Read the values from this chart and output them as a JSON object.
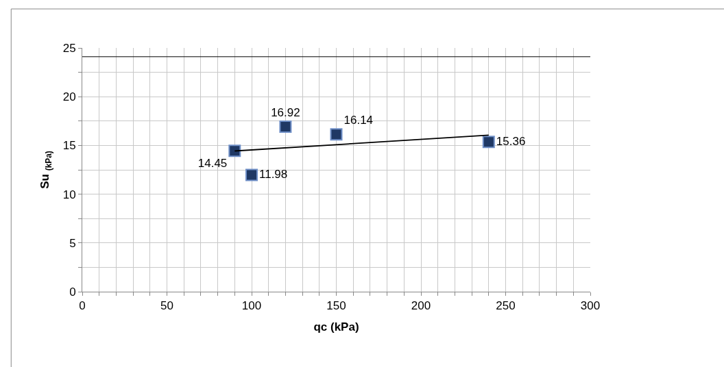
{
  "chart_data": {
    "type": "scatter",
    "xlabel": "qc (kPa)",
    "ylabel": "Su $_{(kPa)}$",
    "x": [
      90,
      100,
      120,
      150,
      240
    ],
    "series": [
      {
        "color": "#1f3864",
        "values": [
          14.45,
          11.98,
          16.92,
          16.14,
          15.36
        ],
        "value_labels": [
          "14.45",
          "11.98",
          "16.92",
          "16.14",
          "15.36"
        ],
        "marker": "square"
      },
      {
        "type": "line",
        "x": [
          90,
          240
        ],
        "color": "#000000",
        "values": [
          14.43,
          16.05
        ],
        "marker": "none"
      }
    ],
    "ref_lines": [
      {
        "axis": "y",
        "value": 24.1,
        "color": "#000000"
      }
    ],
    "xlim": [
      0,
      300
    ],
    "xticks": [
      0,
      {
        "value": 10,
        "label": null
      },
      {
        "value": 20,
        "label": null
      },
      {
        "value": 30,
        "label": null
      },
      {
        "value": 40,
        "label": null
      },
      50,
      {
        "value": 60,
        "label": null
      },
      {
        "value": 70,
        "label": null
      },
      {
        "value": 80,
        "label": null
      },
      {
        "value": 90,
        "label": null
      },
      100,
      {
        "value": 110,
        "label": null
      },
      {
        "value": 120,
        "label": null
      },
      {
        "value": 130,
        "label": null
      },
      {
        "value": 140,
        "label": null
      },
      150,
      {
        "value": 160,
        "label": null
      },
      {
        "value": 170,
        "label": null
      },
      {
        "value": 180,
        "label": null
      },
      {
        "value": 190,
        "label": null
      },
      200,
      {
        "value": 210,
        "label": null
      },
      {
        "value": 220,
        "label": null
      },
      {
        "value": 230,
        "label": null
      },
      {
        "value": 240,
        "label": null
      },
      250,
      {
        "value": 260,
        "label": null
      },
      {
        "value": 270,
        "label": null
      },
      {
        "value": 280,
        "label": null
      },
      {
        "value": 290,
        "label": null
      },
      300
    ],
    "ylim": [
      0,
      25
    ],
    "yticks": [
      0,
      {
        "value": 2.5,
        "label": null
      },
      5,
      {
        "value": 7.5,
        "label": null
      },
      10,
      {
        "value": 12.5,
        "label": null
      },
      15,
      {
        "value": 17.5,
        "label": null
      },
      20,
      {
        "value": 22.5,
        "label": null
      },
      25
    ],
    "grid": true
  }
}
